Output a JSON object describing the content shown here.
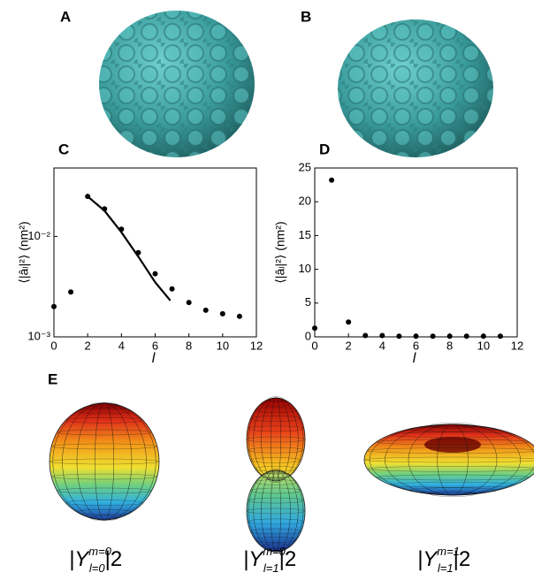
{
  "panels": {
    "A": "A",
    "B": "B",
    "E": "E"
  },
  "formulas": [
    {
      "base": "|Y",
      "sup": "m=0",
      "sub": "l=0",
      "tail": "|2"
    },
    {
      "base": "|Y",
      "sup": "m=0",
      "sub": "l=1",
      "tail": "|2"
    },
    {
      "base": "|Y",
      "sup": "m=1",
      "sub": "l=1",
      "tail": "|2"
    }
  ],
  "chart_data": [
    {
      "type": "scatter",
      "panel": "C",
      "x_label": "l",
      "y_label": "⟨|âₗ|²⟩   (nm²)",
      "log_y": true,
      "xlim": [
        0,
        12
      ],
      "xticks": [
        0,
        2,
        4,
        6,
        8,
        10,
        12
      ],
      "ylim": [
        0.001,
        0.048
      ],
      "yticks": [
        {
          "value": 0.001,
          "label": "10⁻³"
        },
        {
          "value": 0.01,
          "label": "10⁻²"
        }
      ],
      "series": [
        {
          "mode": "markers",
          "color": "#000000",
          "x": [
            0,
            1,
            2,
            3,
            4,
            5,
            6,
            7,
            8,
            9,
            10,
            11
          ],
          "values": [
            0.002,
            0.0028,
            0.025,
            0.0188,
            0.0118,
            0.0069,
            0.00425,
            0.003,
            0.0022,
            0.00184,
            0.0017,
            0.0016
          ]
        },
        {
          "mode": "line",
          "color": "#000000",
          "x": [
            2,
            3,
            4,
            5,
            6,
            6.9
          ],
          "values": [
            0.025,
            0.018,
            0.011,
            0.0063,
            0.0035,
            0.0023
          ]
        }
      ]
    },
    {
      "type": "scatter",
      "panel": "D",
      "x_label": "l",
      "y_label": "⟨|âₗ|²⟩   (nm²)",
      "log_y": false,
      "xlim": [
        0,
        12
      ],
      "xticks": [
        0,
        2,
        4,
        6,
        8,
        10,
        12
      ],
      "ylim": [
        0,
        25
      ],
      "yticks": [
        0,
        5,
        10,
        15,
        20,
        25
      ],
      "series": [
        {
          "mode": "markers",
          "color": "#000000",
          "x": [
            0,
            1,
            2,
            3,
            4,
            5,
            6,
            7,
            8,
            9,
            10,
            11
          ],
          "values": [
            1.3,
            23.2,
            2.2,
            0.2,
            0.2,
            0.1,
            0.1,
            0.1,
            0.1,
            0.1,
            0.1,
            0.1
          ]
        }
      ]
    }
  ]
}
